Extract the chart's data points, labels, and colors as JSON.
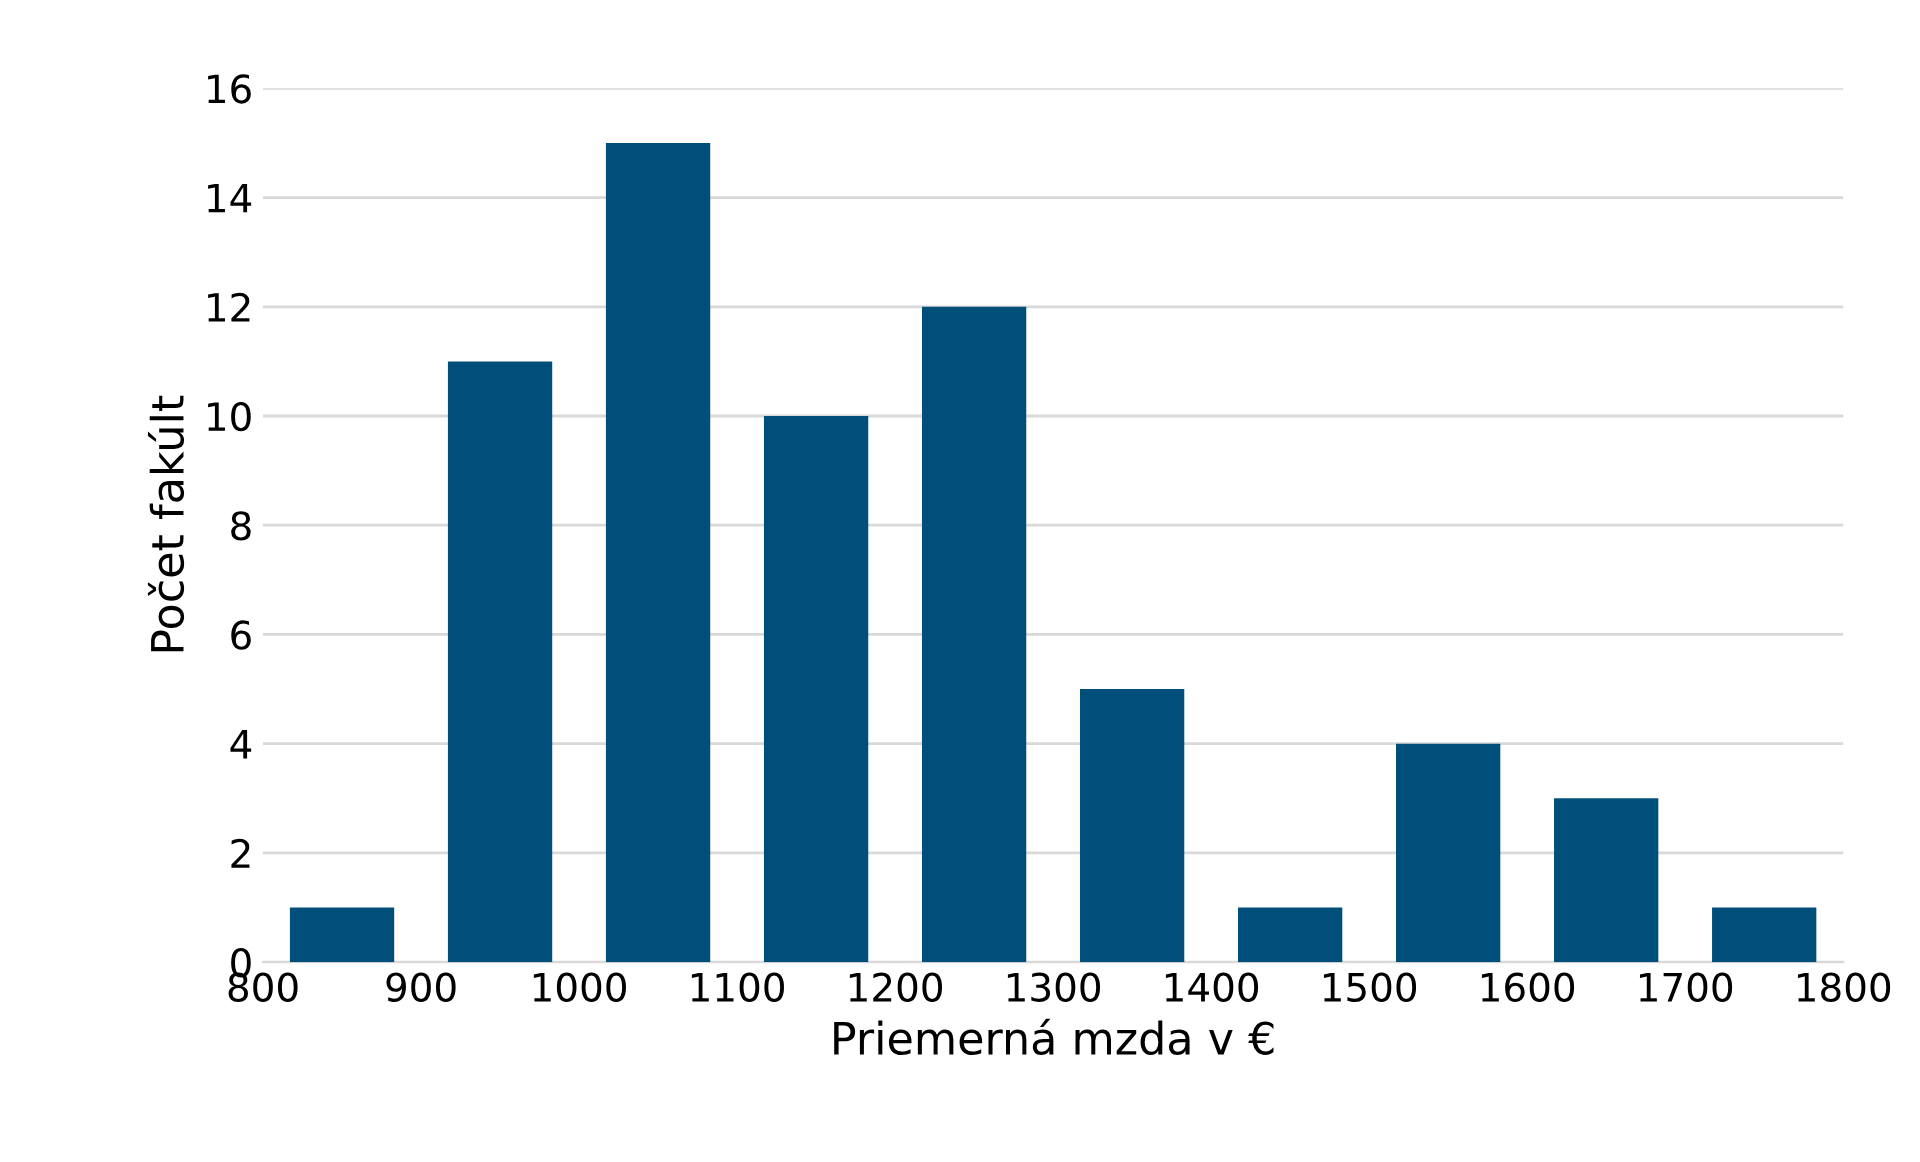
{
  "chart_data": {
    "type": "bar",
    "xlabel": "Priemerná mzda v €",
    "ylabel": "Počet fakúlt",
    "x": [
      850,
      950,
      1050,
      1150,
      1250,
      1350,
      1450,
      1550,
      1650,
      1750
    ],
    "values": [
      1,
      11,
      15,
      10,
      12,
      5,
      1,
      4,
      3,
      1
    ],
    "color": "#004f7a",
    "xlim": [
      800,
      1800
    ],
    "xticks": [
      800,
      900,
      1000,
      1100,
      1200,
      1300,
      1400,
      1500,
      1600,
      1700,
      1800
    ],
    "ylim": [
      0,
      16
    ],
    "yticks": [
      0,
      2,
      4,
      6,
      8,
      10,
      12,
      14,
      16
    ],
    "grid": "y",
    "legend": false
  }
}
